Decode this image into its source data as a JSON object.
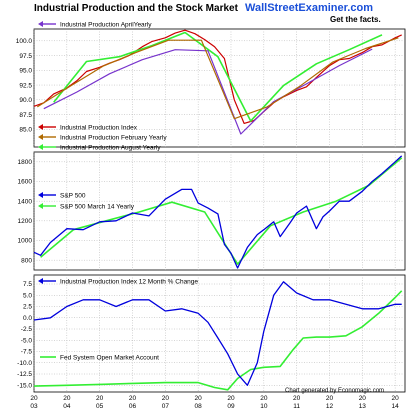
{
  "header": {
    "title": "Industrial Production and the Stock Market",
    "brand": "WallStreetExaminer.com",
    "tagline": "Get the facts.",
    "credit": "Chart generated by Economagic.com"
  },
  "colors": {
    "red": "#cc0000",
    "purple": "#7733cc",
    "brown": "#b06a00",
    "green": "#33ee33",
    "blue": "#0000dd",
    "brand_blue": "#1a4fd8",
    "grid": "#999999"
  },
  "x_axis": {
    "labels": [
      "20\n03",
      "20\n04",
      "20\n05",
      "20\n06",
      "20\n07",
      "20\n08",
      "20\n09",
      "20\n10",
      "20\n11",
      "20\n12",
      "20\n13",
      "20\n14"
    ],
    "years": [
      2003,
      2004,
      2005,
      2006,
      2007,
      2008,
      2009,
      2010,
      2011,
      2012,
      2013,
      2014
    ],
    "range": [
      2003,
      2014.3
    ]
  },
  "chart_data": [
    {
      "type": "line",
      "panel": "industrial-production",
      "ylim": [
        82,
        102
      ],
      "yticks": [
        85.0,
        87.5,
        90.0,
        92.5,
        95.0,
        97.5,
        100.0
      ],
      "ytick_labels": [
        "85.0",
        "87.5",
        "90.0",
        "92.5",
        "95.0",
        "97.5",
        "100.0"
      ],
      "series": [
        {
          "name": "Industrial Production April Yearly",
          "color_key": "purple",
          "legend": "Industrial Production AprilYearly",
          "x": [
            2003.3,
            2004.3,
            2005.3,
            2006.3,
            2007.3,
            2008.3,
            2009.3,
            2010.3,
            2011.3,
            2012.3,
            2013.3
          ],
          "y": [
            88.5,
            91.3,
            94.4,
            96.8,
            98.5,
            98.3,
            84.2,
            89.7,
            92.7,
            95.8,
            98.6
          ]
        },
        {
          "name": "Industrial Production Index",
          "color_key": "red",
          "legend": "Industrial Production Index",
          "x": [
            2003.0,
            2003.3,
            2003.6,
            2004.0,
            2004.3,
            2004.6,
            2005.0,
            2005.3,
            2005.6,
            2005.9,
            2006.3,
            2006.6,
            2007.0,
            2007.3,
            2007.6,
            2007.9,
            2008.2,
            2008.5,
            2008.8,
            2009.1,
            2009.4,
            2009.7,
            2010.0,
            2010.3,
            2010.6,
            2011.0,
            2011.3,
            2011.6,
            2012.0,
            2012.3,
            2012.6,
            2013.0,
            2013.3,
            2013.6,
            2014.0,
            2014.2
          ],
          "y": [
            88.9,
            89.5,
            91.0,
            92.0,
            93.2,
            94.8,
            95.5,
            96.2,
            96.8,
            97.5,
            99.0,
            99.9,
            100.5,
            101.3,
            101.8,
            101.2,
            100.2,
            99.0,
            97.0,
            90.0,
            86.0,
            86.5,
            88.0,
            89.5,
            90.5,
            91.6,
            92.2,
            93.8,
            95.8,
            96.8,
            97.0,
            98.0,
            99.0,
            99.3,
            100.5,
            101.0
          ]
        },
        {
          "name": "Industrial Production February Yearly",
          "color_key": "brown",
          "legend": "Industrial Production February Yearly",
          "x": [
            2003.1,
            2004.1,
            2005.1,
            2006.1,
            2007.1,
            2008.1,
            2009.1,
            2010.1,
            2011.1,
            2012.1,
            2013.1,
            2014.1
          ],
          "y": [
            88.8,
            92.3,
            95.7,
            98.0,
            100.1,
            100.1,
            86.8,
            88.8,
            92.3,
            96.4,
            98.7,
            100.5
          ]
        },
        {
          "name": "Industrial Production August Yearly",
          "color_key": "green",
          "legend": "Industrial Production August Yearly",
          "x": [
            2003.6,
            2004.6,
            2005.6,
            2006.6,
            2007.6,
            2008.6,
            2009.6,
            2010.6,
            2011.6,
            2012.6,
            2013.6
          ],
          "y": [
            89.6,
            96.5,
            97.3,
            99.2,
            101.4,
            97.3,
            86.4,
            92.4,
            96.1,
            98.5,
            101.0
          ]
        }
      ]
    },
    {
      "type": "line",
      "panel": "sp500",
      "ylim": [
        700,
        1900
      ],
      "yticks": [
        800,
        1000,
        1200,
        1400,
        1600,
        1800
      ],
      "ytick_labels": [
        "800",
        "1000",
        "1200",
        "1400",
        "1600",
        "1800"
      ],
      "series": [
        {
          "name": "S&P 500",
          "color_key": "blue",
          "legend": "S&P 500",
          "x": [
            2003.0,
            2003.2,
            2003.5,
            2004.0,
            2004.5,
            2005.0,
            2005.5,
            2006.0,
            2006.5,
            2007.0,
            2007.5,
            2007.8,
            2008.0,
            2008.3,
            2008.6,
            2008.8,
            2009.0,
            2009.2,
            2009.5,
            2009.8,
            2010.0,
            2010.3,
            2010.5,
            2010.8,
            2011.0,
            2011.3,
            2011.6,
            2011.8,
            2012.0,
            2012.3,
            2012.6,
            2013.0,
            2013.3,
            2013.6,
            2014.0,
            2014.2
          ],
          "y": [
            880,
            850,
            980,
            1120,
            1110,
            1190,
            1200,
            1280,
            1250,
            1420,
            1520,
            1520,
            1380,
            1330,
            1270,
            960,
            870,
            720,
            930,
            1060,
            1110,
            1190,
            1040,
            1180,
            1280,
            1350,
            1120,
            1240,
            1300,
            1400,
            1400,
            1500,
            1600,
            1680,
            1800,
            1860
          ]
        },
        {
          "name": "S&P 500 March 14 Yearly",
          "color_key": "green",
          "legend": "S&P 500 March 14 Yearly",
          "x": [
            2003.2,
            2004.2,
            2005.2,
            2006.2,
            2007.2,
            2008.2,
            2009.2,
            2010.2,
            2011.2,
            2012.2,
            2013.2,
            2014.2
          ],
          "y": [
            830,
            1110,
            1200,
            1290,
            1390,
            1290,
            760,
            1150,
            1290,
            1400,
            1560,
            1840
          ]
        }
      ]
    },
    {
      "type": "line",
      "panel": "change-and-fomc",
      "ylim": [
        -16.5,
        9.5
      ],
      "yticks": [
        -15.0,
        -12.5,
        -10.0,
        -7.5,
        -5.0,
        -2.5,
        0.0,
        2.5,
        5.0,
        7.5
      ],
      "ytick_labels": [
        "-15.0",
        "-12.5",
        "-10.0",
        "-7.5",
        "-5.0",
        "-2.5",
        "0.0",
        "2.5",
        "5.0",
        "7.5"
      ],
      "series": [
        {
          "name": "Industrial Production Index 12 Month % Change",
          "color_key": "blue",
          "legend": "Industrial Production Index 12 Month % Change",
          "x": [
            2003.0,
            2003.5,
            2004.0,
            2004.5,
            2005.0,
            2005.5,
            2006.0,
            2006.5,
            2007.0,
            2007.5,
            2008.0,
            2008.3,
            2008.6,
            2008.9,
            2009.2,
            2009.5,
            2009.8,
            2010.0,
            2010.3,
            2010.6,
            2011.0,
            2011.5,
            2012.0,
            2012.5,
            2013.0,
            2013.5,
            2014.0,
            2014.2
          ],
          "y": [
            -0.5,
            0.0,
            2.5,
            4.0,
            4.0,
            2.5,
            4.0,
            4.0,
            1.5,
            2.0,
            1.0,
            -1.0,
            -4.5,
            -8.0,
            -12.5,
            -15.0,
            -10.0,
            -3.0,
            5.0,
            8.0,
            5.5,
            4.0,
            4.0,
            3.0,
            2.0,
            2.0,
            3.0,
            3.0
          ]
        },
        {
          "name": "Fed System Open Market Account",
          "color_key": "green",
          "legend": "Fed System Open Market Account",
          "x": [
            2003.0,
            2004.0,
            2005.0,
            2006.0,
            2007.0,
            2008.0,
            2008.5,
            2008.9,
            2009.2,
            2009.6,
            2010.0,
            2010.5,
            2010.9,
            2011.2,
            2011.6,
            2012.0,
            2012.5,
            2013.0,
            2013.5,
            2014.0,
            2014.2
          ],
          "y": [
            -15.2,
            -15.0,
            -14.8,
            -14.6,
            -14.4,
            -14.4,
            -15.5,
            -16.0,
            -13.5,
            -11.5,
            -11.0,
            -10.8,
            -7.0,
            -4.5,
            -4.3,
            -4.3,
            -4.0,
            -2.0,
            1.0,
            4.5,
            6.0
          ]
        }
      ]
    }
  ]
}
